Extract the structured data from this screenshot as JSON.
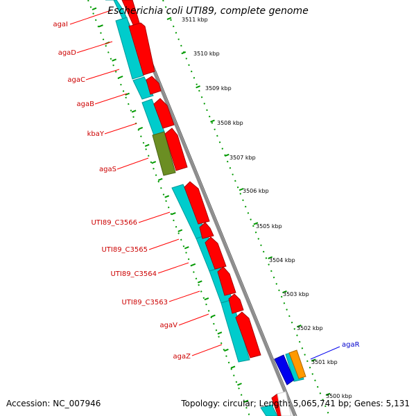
{
  "title": "Escherichia coli UTI89, complete genome",
  "accession_label": "Accession:",
  "accession": "NC_007946",
  "topology_label": "Topology:",
  "topology": "circular",
  "length_label": "Length:",
  "length": "5,065,741 bp",
  "genes_label": "Genes:",
  "genes": "5,131",
  "colors": {
    "backbone": "#8c8c8c",
    "outer_track": "#00cc00",
    "forward_cds": "#ff0000",
    "reverse_cds": "#00cccc",
    "other_feature": "#6b8e23",
    "highlight_gene": "#0000ee",
    "orange_feature": "#ff9900",
    "label_red": "#cc0000",
    "label_blue": "#0000cc"
  },
  "scale": {
    "unit": "kbp",
    "ticks": [
      "3511 kbp",
      "3510 kbp",
      "3509 kbp",
      "3508 kbp",
      "3507 kbp",
      "3506 kbp",
      "3505 kbp",
      "3504 kbp",
      "3503 kbp",
      "3502 kbp",
      "3501 kbp",
      "3500 kbp"
    ]
  },
  "gene_labels": [
    {
      "name": "agaI",
      "color": "red"
    },
    {
      "name": "agaD",
      "color": "red"
    },
    {
      "name": "agaC",
      "color": "red"
    },
    {
      "name": "agaB",
      "color": "red"
    },
    {
      "name": "kbaY",
      "color": "red"
    },
    {
      "name": "agaS",
      "color": "red"
    },
    {
      "name": "UTI89_C3566",
      "color": "red"
    },
    {
      "name": "UTI89_C3565",
      "color": "red"
    },
    {
      "name": "UTI89_C3564",
      "color": "red"
    },
    {
      "name": "UTI89_C3563",
      "color": "red"
    },
    {
      "name": "agaV",
      "color": "red"
    },
    {
      "name": "agaZ",
      "color": "red"
    },
    {
      "name": "agaR",
      "color": "blue"
    }
  ]
}
